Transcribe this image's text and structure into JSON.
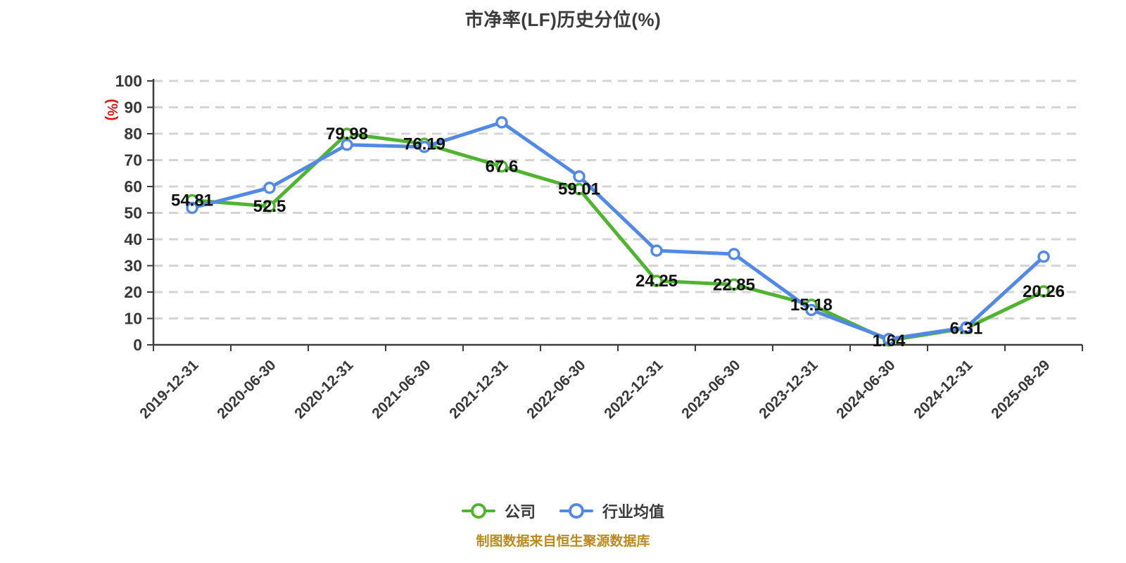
{
  "chart_data": {
    "type": "line",
    "title": "市净率(LF)历史分位(%)",
    "xlabel": "",
    "ylabel": "(%)",
    "ylim": [
      0,
      100
    ],
    "y_tick_step": 10,
    "grid": "horizontal-dashed",
    "legend_position": "bottom",
    "categories": [
      "2019-12-31",
      "2020-06-30",
      "2020-12-31",
      "2021-06-30",
      "2021-12-31",
      "2022-06-30",
      "2022-12-31",
      "2023-06-30",
      "2023-12-31",
      "2024-06-30",
      "2024-12-31",
      "2025-08-29"
    ],
    "series": [
      {
        "name": "公司",
        "color": "#50b432",
        "values": [
          54.81,
          52.5,
          79.98,
          76.19,
          67.6,
          59.01,
          24.25,
          22.85,
          15.18,
          1.64,
          6.31,
          20.26
        ],
        "point_labels": [
          "54.81",
          "52.5",
          "79.98",
          "76.19",
          "67.6",
          "59.01",
          "24.25",
          "22.85",
          "15.18",
          "1.64",
          "6.31",
          "20.26"
        ]
      },
      {
        "name": "行业均值",
        "color": "#5289e4",
        "values": [
          51.9,
          59.5,
          75.8,
          75.0,
          84.3,
          63.8,
          35.7,
          34.4,
          13.2,
          2.2,
          6.6,
          33.4
        ],
        "point_labels": null
      }
    ]
  },
  "footer": {
    "source_note": "制图数据来自恒生聚源数据库"
  },
  "colors": {
    "company_green": "#50b432",
    "industry_blue": "#5289e4",
    "axis_line": "#3d3d3d",
    "axis_label": "#383838",
    "y_unit_red": "#e11414",
    "gridline": "#d4d4d4",
    "data_label": "#111111",
    "source_note": "#ba8a1e"
  }
}
